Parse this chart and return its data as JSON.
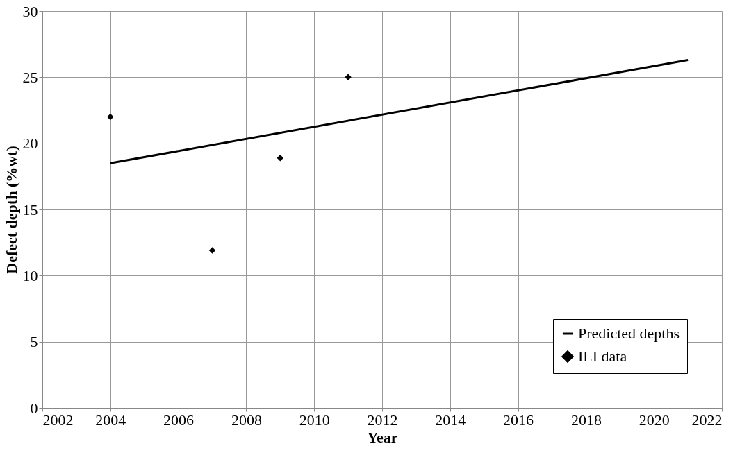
{
  "chart_data": {
    "type": "line",
    "xlabel": "Year",
    "ylabel": "Defect depth (%wt)",
    "xlim": [
      2002,
      2022
    ],
    "xticks": [
      2002,
      2004,
      2006,
      2008,
      2010,
      2012,
      2014,
      2016,
      2018,
      2020,
      2022
    ],
    "ylim": [
      0,
      30
    ],
    "yticks": [
      0,
      5,
      10,
      15,
      20,
      25,
      30
    ],
    "grid": true,
    "legend": "bottom right",
    "series": [
      {
        "name": "Predicted depths",
        "color": "#000000",
        "x": [
          2004,
          2021
        ],
        "values": [
          18.5,
          26.3
        ],
        "marker": "none",
        "line_style": "solid"
      },
      {
        "name": "ILI data",
        "type": "scatter",
        "color": "#000000",
        "x": [
          2004,
          2007,
          2009,
          2011
        ],
        "values": [
          22,
          11.9,
          18.9,
          25
        ],
        "marker": "diamond"
      }
    ]
  }
}
